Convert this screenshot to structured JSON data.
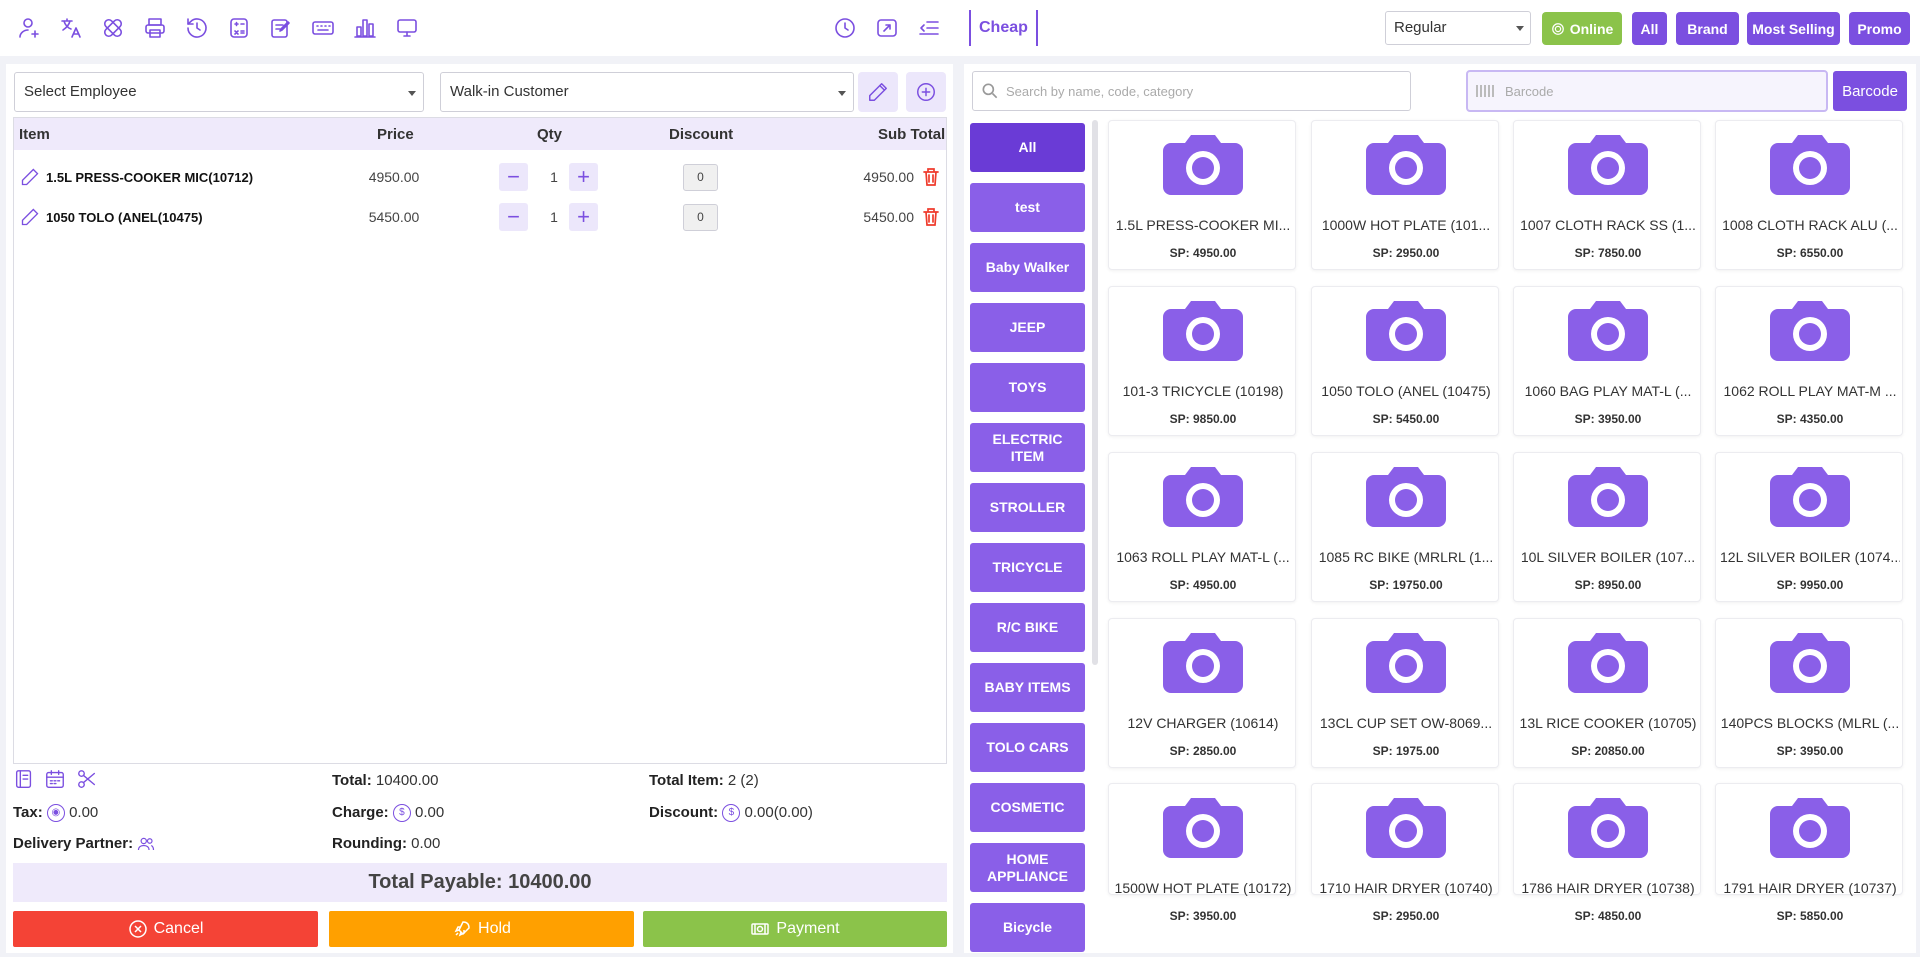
{
  "topbar": {
    "left_icons": [
      "user-icon",
      "translate-icon",
      "bandage-icon",
      "printer-icon",
      "history-icon",
      "calculator-icon",
      "edit-note-icon",
      "keyboard-icon",
      "bar-chart-icon",
      "monitor-icon"
    ],
    "right_icons": [
      "clock-icon",
      "fullscreen-icon",
      "collapse-menu-icon"
    ],
    "cheap_label": "Cheap",
    "pricing_select": "Regular",
    "online_label": "Online",
    "all_label": "All",
    "brand_label": "Brand",
    "most_selling_label": "Most Selling",
    "promo_label": "Promo"
  },
  "left": {
    "employee_select": "Select Employee",
    "customer_select": "Walk-in Customer",
    "columns": {
      "item": "Item",
      "price": "Price",
      "qty": "Qty",
      "discount": "Discount",
      "sub_total": "Sub Total"
    },
    "cart": [
      {
        "name": "1.5L PRESS-COOKER MIC(10712)",
        "price": "4950.00",
        "qty": "1",
        "discount": "0",
        "sub_total": "4950.00"
      },
      {
        "name": "1050 TOLO (ANEL(10475)",
        "price": "5450.00",
        "qty": "1",
        "discount": "0",
        "sub_total": "5450.00"
      }
    ],
    "summary": {
      "total_label": "Total:",
      "total_value": "10400.00",
      "total_item_label": "Total Item:",
      "total_item_value": "2 (2)",
      "tax_label": "Tax:",
      "tax_value": "0.00",
      "charge_label": "Charge:",
      "charge_value": "0.00",
      "discount_label": "Discount:",
      "discount_value": "0.00(0.00)",
      "delivery_label": "Delivery Partner:",
      "rounding_label": "Rounding:",
      "rounding_value": "0.00"
    },
    "total_payable": "Total Payable: 10400.00",
    "cancel_label": "Cancel",
    "hold_label": "Hold",
    "payment_label": "Payment"
  },
  "right": {
    "search_placeholder": "Search by name, code, category",
    "barcode_placeholder": "Barcode",
    "barcode_button": "Barcode",
    "categories": [
      "All",
      "test",
      "Baby Walker",
      "JEEP",
      "TOYS",
      "ELECTRIC ITEM",
      "STROLLER",
      "TRICYCLE",
      "R/C BIKE",
      "BABY ITEMS",
      "TOLO CARS",
      "COSMETIC",
      "HOME APPLIANCE",
      "Bicycle"
    ],
    "products": [
      {
        "name": "1.5L PRESS-COOKER MI...",
        "sp": "SP: 4950.00"
      },
      {
        "name": "1000W HOT PLATE (101...",
        "sp": "SP: 2950.00"
      },
      {
        "name": "1007 CLOTH RACK SS (1...",
        "sp": "SP: 7850.00"
      },
      {
        "name": "1008 CLOTH RACK ALU (...",
        "sp": "SP: 6550.00"
      },
      {
        "name": "101-3 TRICYCLE (10198)",
        "sp": "SP: 9850.00"
      },
      {
        "name": "1050 TOLO (ANEL (10475)",
        "sp": "SP: 5450.00"
      },
      {
        "name": "1060 BAG PLAY MAT-L (...",
        "sp": "SP: 3950.00"
      },
      {
        "name": "1062 ROLL PLAY MAT-M ...",
        "sp": "SP: 4350.00"
      },
      {
        "name": "1063 ROLL PLAY MAT-L (...",
        "sp": "SP: 4950.00"
      },
      {
        "name": "1085 RC BIKE (MRLRL (1...",
        "sp": "SP: 19750.00"
      },
      {
        "name": "10L SILVER BOILER (107...",
        "sp": "SP: 8950.00"
      },
      {
        "name": "12L SILVER BOILER (1074...",
        "sp": "SP: 9950.00"
      },
      {
        "name": "12V CHARGER (10614)",
        "sp": "SP: 2850.00"
      },
      {
        "name": "13CL CUP SET OW-8069...",
        "sp": "SP: 1975.00"
      },
      {
        "name": "13L RICE COOKER (10705)",
        "sp": "SP: 20850.00"
      },
      {
        "name": "140PCS BLOCKS (MLRL (...",
        "sp": "SP: 3950.00"
      },
      {
        "name": "1500W HOT PLATE (10172)",
        "sp": "SP: 3950.00"
      },
      {
        "name": "1710 HAIR DRYER (10740)",
        "sp": "SP: 2950.00"
      },
      {
        "name": "1786 HAIR DRYER (10738)",
        "sp": "SP: 4850.00"
      },
      {
        "name": "1791 HAIR DRYER (10737)",
        "sp": "SP: 5850.00"
      }
    ]
  },
  "colors": {
    "accent": "#7b4fe0",
    "online": "#8bc34a",
    "cancel": "#f44336",
    "hold": "#ffa000",
    "payment": "#8bc34a"
  }
}
